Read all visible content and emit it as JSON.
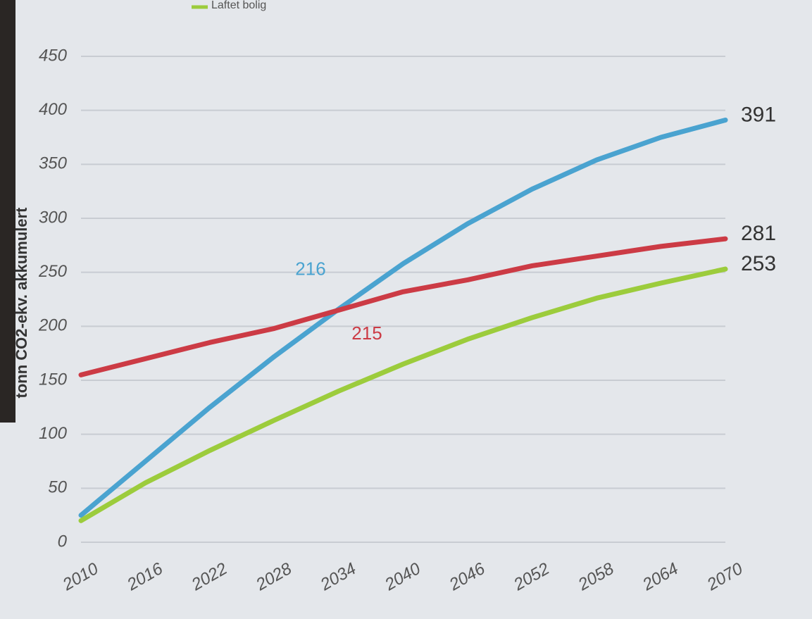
{
  "chart_data": {
    "type": "line",
    "y_label": "tonn CO2-ekv. akkumulert",
    "categories": [
      "2010",
      "2016",
      "2022",
      "2028",
      "2034",
      "2040",
      "2046",
      "2052",
      "2058",
      "2064",
      "2070"
    ],
    "series": [
      {
        "color": "#4aa3d0",
        "values": [
          25,
          75,
          125,
          172,
          216,
          258,
          295,
          327,
          354,
          375,
          391
        ]
      },
      {
        "color": "#cc3b45",
        "values": [
          155,
          170,
          185,
          198,
          215,
          232,
          243,
          256,
          265,
          274,
          281
        ]
      },
      {
        "name": "Laftet bolig",
        "color": "#9ccc3c",
        "values": [
          20,
          55,
          85,
          113,
          140,
          165,
          188,
          208,
          226,
          240,
          253
        ]
      }
    ],
    "annotations": [
      {
        "series": 0,
        "index": 4
      },
      {
        "series": 1,
        "index": 4
      }
    ],
    "end_labels": true,
    "ylim": [
      0,
      450
    ],
    "yticks": [
      0,
      50,
      100,
      150,
      200,
      250,
      300,
      350,
      400,
      450
    ],
    "grid": true
  }
}
